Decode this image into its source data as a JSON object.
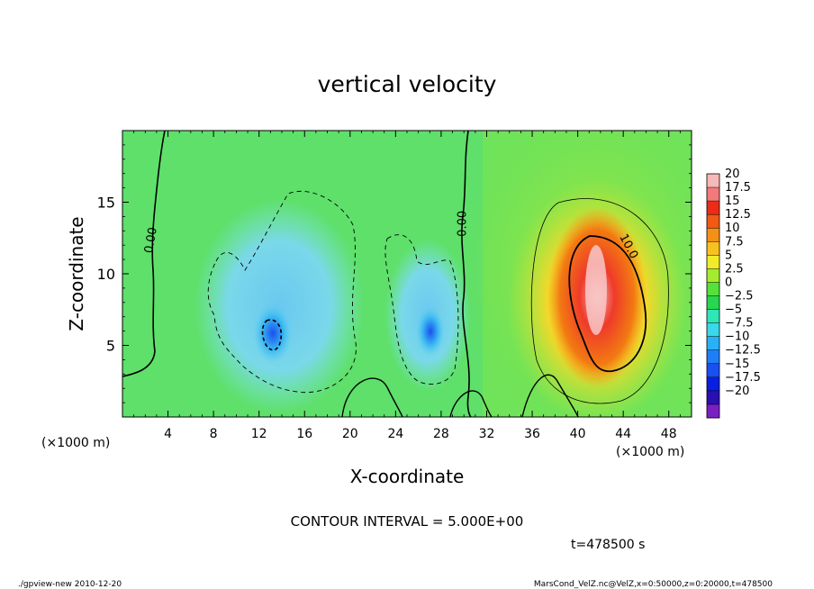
{
  "chart_data": {
    "type": "heatmap",
    "title": "vertical velocity",
    "xlabel": "X-coordinate",
    "ylabel": "Z-coordinate",
    "x_unit": "(×1000 m)",
    "z_unit": "(×1000 m)",
    "xlim": [
      0,
      50
    ],
    "ylim": [
      0,
      20
    ],
    "x_ticks": [
      4,
      8,
      12,
      16,
      20,
      24,
      28,
      32,
      36,
      40,
      44,
      48
    ],
    "y_ticks": [
      5,
      10,
      15
    ],
    "colorbar": {
      "levels": [
        "20",
        "17.5",
        "15",
        "12.5",
        "10",
        "7.5",
        "5",
        "2.5",
        "0",
        "−2.5",
        "−5",
        "−7.5",
        "−10",
        "−12.5",
        "−15",
        "−17.5",
        "−20"
      ],
      "colors": [
        "#7a1fc2",
        "#2a10b0",
        "#0a1ee0",
        "#1a4ff0",
        "#1f7ef6",
        "#2ab0f6",
        "#3ad8e8",
        "#2ee6b8",
        "#28d650",
        "#55e03a",
        "#a6ec2e",
        "#f0ec2a",
        "#f8c21e",
        "#f49018",
        "#f05a14",
        "#ec2c18",
        "#f27a7a",
        "#f6b8b8"
      ]
    },
    "contour_labels": [
      "0.00",
      "0.00",
      "10.0"
    ],
    "features": [
      {
        "kind": "updraft",
        "x": 41.5,
        "z": 8.5,
        "peak": 20
      },
      {
        "kind": "downdraft",
        "x": 13,
        "z": 5.8,
        "peak": -11
      },
      {
        "kind": "downdraft",
        "x": 27,
        "z": 6,
        "peak": -9
      }
    ],
    "contour_interval_text": "CONTOUR INTERVAL = 5.000E+00",
    "time_text": "t=478500 s"
  },
  "footer": {
    "left": "./gpview-new  2010-12-20",
    "right": "MarsCond_VelZ.nc@VelZ,x=0:50000,z=0:20000,t=478500"
  }
}
